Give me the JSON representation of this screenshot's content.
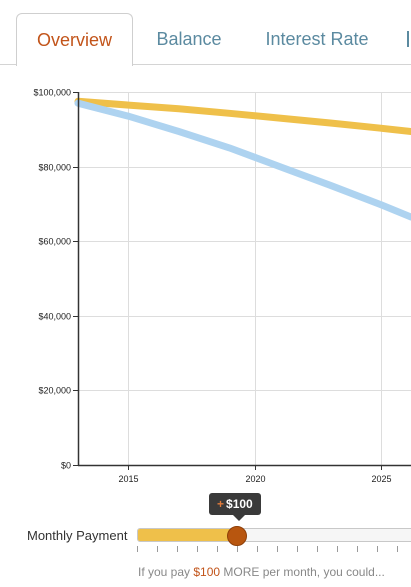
{
  "tabs": [
    {
      "label": "Overview",
      "active": true
    },
    {
      "label": "Balance",
      "active": false
    },
    {
      "label": "Interest Rate",
      "active": false
    }
  ],
  "colors": {
    "accent": "#c2541a",
    "tab_text": "#5b8aa0",
    "series_gold": "#efc04a",
    "series_blue": "#aed3f0"
  },
  "chart_data": {
    "type": "line",
    "y_ticks": [
      "$0",
      "$20,000",
      "$40,000",
      "$60,000",
      "$80,000",
      "$100,000"
    ],
    "x_ticks": [
      "2015",
      "2020",
      "2025"
    ],
    "ylim": [
      0,
      100000
    ],
    "xlim": [
      2013,
      2026.2
    ],
    "grid": true,
    "series": [
      {
        "color": "#efc04a",
        "x": [
          2013,
          2015,
          2017,
          2019,
          2021,
          2023,
          2025,
          2026.2
        ],
        "values": [
          97500,
          96500,
          95500,
          94300,
          93000,
          91700,
          90300,
          89400
        ]
      },
      {
        "color": "#aed3f0",
        "x": [
          2013,
          2015,
          2017,
          2019,
          2021,
          2023,
          2025,
          2026.2
        ],
        "values": [
          97000,
          93500,
          89400,
          85000,
          80000,
          75000,
          69800,
          66500
        ]
      }
    ]
  },
  "slider": {
    "label": "Monthly Payment",
    "tooltip_prefix": "+",
    "tooltip_value": "$100",
    "fraction": 0.345
  },
  "footer": {
    "prefix": "If you pay ",
    "amount": "$100",
    "suffix": " MORE per month, you could..."
  }
}
